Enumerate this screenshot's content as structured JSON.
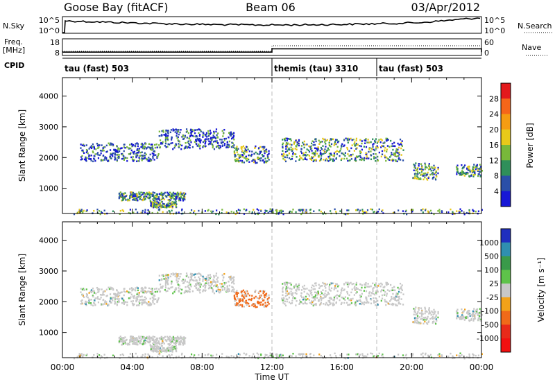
{
  "header": {
    "station": "Goose Bay (fitACF)",
    "beam": "Beam 06",
    "date": "03/Apr/2012"
  },
  "noise_panel": {
    "left_label": "N.Sky",
    "left_ticks": [
      "10^5",
      "10^0"
    ],
    "right_ticks": [
      "10^5",
      "10^0"
    ],
    "right_label": "N.Search"
  },
  "freq_panel": {
    "left_label_1": "Freq.",
    "left_label_2": "[MHz]",
    "left_ticks": [
      "18",
      "8"
    ],
    "right_ticks": [
      "60",
      "0"
    ],
    "right_label": "Nave"
  },
  "cpid": {
    "label": "CPID",
    "segments": [
      {
        "name": "tau (fast) 503",
        "start_hour": 0
      },
      {
        "name": "themis (tau) 3310",
        "start_hour": 12
      },
      {
        "name": "tau (fast) 503",
        "start_hour": 18
      }
    ]
  },
  "power_panel": {
    "ylabel": "Slant Range [km]",
    "colorbar_label": "Power [dB]",
    "colorbar_ticks": [
      "28",
      "24",
      "20",
      "16",
      "12",
      "8",
      "4"
    ],
    "colorbar_colors": [
      "#e31a1c",
      "#f5661a",
      "#f59c12",
      "#e8c91a",
      "#78b83a",
      "#2f8f5a",
      "#2a4fa8",
      "#1717d6"
    ]
  },
  "velocity_panel": {
    "ylabel": "Slant Range [km]",
    "colorbar_label": "Velocity [m s⁻¹]",
    "colorbar_ticks": [
      "1000",
      "500",
      "100",
      "25",
      "-25",
      "-100",
      "-500",
      "-1000"
    ],
    "colorbar_colors": [
      "#1f2fbf",
      "#2f8fb0",
      "#3a9a4a",
      "#5ec34a",
      "#c8c8c8",
      "#f2a21a",
      "#f06a1a",
      "#e82a1a",
      "#f21010"
    ]
  },
  "y_ticks": [
    "4000",
    "3000",
    "2000",
    "1000"
  ],
  "x_ticks": [
    "00:00",
    "04:00",
    "08:00",
    "12:00",
    "16:00",
    "20:00",
    "00:00"
  ],
  "xlabel": "Time UT",
  "chart_data": {
    "type": "heatmap",
    "x_unit": "hours UT",
    "xlim": [
      0,
      24
    ],
    "ylim": [
      180,
      4600
    ],
    "series": [
      {
        "name": "Power",
        "clim": [
          0,
          30
        ]
      },
      {
        "name": "Velocity",
        "clim": [
          -1000,
          1000
        ]
      }
    ],
    "freq_mhz": {
      "x": [
        0,
        12,
        20,
        24
      ],
      "y": [
        10,
        12,
        12,
        10
      ]
    },
    "nave": {
      "x": [
        0,
        12,
        20,
        24
      ],
      "y": [
        15,
        35,
        35,
        15
      ]
    },
    "echo_bands": [
      {
        "t0": 1.0,
        "t1": 5.5,
        "r0": 1900,
        "r1": 2500
      },
      {
        "t0": 5.5,
        "t1": 9.8,
        "r0": 2300,
        "r1": 2950
      },
      {
        "t0": 9.8,
        "t1": 11.8,
        "r0": 1850,
        "r1": 2400
      },
      {
        "t0": 12.5,
        "t1": 19.5,
        "r0": 1900,
        "r1": 2650
      },
      {
        "t0": 20.0,
        "t1": 21.5,
        "r0": 1300,
        "r1": 1850
      },
      {
        "t0": 22.5,
        "t1": 24.0,
        "r0": 1400,
        "r1": 1800
      },
      {
        "t0": 3.2,
        "t1": 7.0,
        "r0": 620,
        "r1": 900
      },
      {
        "t0": 5.0,
        "t1": 6.5,
        "r0": 400,
        "r1": 600
      },
      {
        "t0": 0.6,
        "t1": 24.0,
        "r0": 180,
        "r1": 350
      }
    ]
  }
}
